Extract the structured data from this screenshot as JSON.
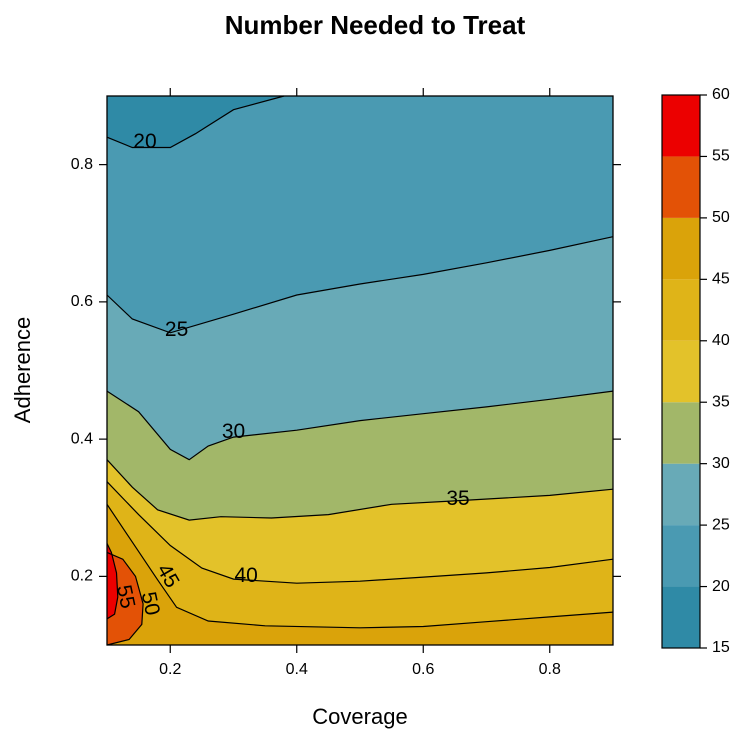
{
  "chart_data": {
    "type": "contour",
    "title": "Number Needed to Treat",
    "xlabel": "Coverage",
    "ylabel": "Adherence",
    "xlim": [
      0.1,
      0.9
    ],
    "ylim": [
      0.1,
      0.9
    ],
    "x_ticks": [
      0.2,
      0.4,
      0.6,
      0.8
    ],
    "x_tick_labels": [
      "0.2",
      "0.4",
      "0.6",
      "0.8"
    ],
    "y_ticks": [
      0.2,
      0.4,
      0.6,
      0.8
    ],
    "y_tick_labels": [
      "0.2",
      "0.4",
      "0.6",
      "0.8"
    ],
    "grid": false,
    "legend_position": "right",
    "colorbar": {
      "breaks": [
        15,
        20,
        25,
        30,
        35,
        40,
        45,
        50,
        55,
        60
      ],
      "tick_labels": [
        "15",
        "20",
        "25",
        "30",
        "35",
        "40",
        "45",
        "50",
        "55",
        "60"
      ],
      "colors": [
        "#2f8aa6",
        "#4a9ab2",
        "#68aab7",
        "#a2b769",
        "#e3c22a",
        "#dfb418",
        "#daa30a",
        "#e35206",
        "#ec0000"
      ]
    },
    "contours": [
      {
        "level": 20,
        "label": "20",
        "label_at": [
          0.16,
          0.832
        ],
        "points": [
          [
            0.1,
            0.84
          ],
          [
            0.14,
            0.825
          ],
          [
            0.2,
            0.825
          ],
          [
            0.24,
            0.845
          ],
          [
            0.3,
            0.88
          ],
          [
            0.38,
            0.9
          ]
        ]
      },
      {
        "level": 25,
        "label": "25",
        "label_at": [
          0.21,
          0.558
        ],
        "points": [
          [
            0.1,
            0.61
          ],
          [
            0.14,
            0.575
          ],
          [
            0.2,
            0.555
          ],
          [
            0.3,
            0.582
          ],
          [
            0.4,
            0.61
          ],
          [
            0.5,
            0.626
          ],
          [
            0.6,
            0.64
          ],
          [
            0.7,
            0.657
          ],
          [
            0.8,
            0.675
          ],
          [
            0.9,
            0.695
          ]
        ]
      },
      {
        "level": 30,
        "label": "30",
        "label_at": [
          0.3,
          0.41
        ],
        "points": [
          [
            0.1,
            0.47
          ],
          [
            0.15,
            0.44
          ],
          [
            0.2,
            0.385
          ],
          [
            0.23,
            0.37
          ],
          [
            0.26,
            0.39
          ],
          [
            0.3,
            0.403
          ],
          [
            0.4,
            0.413
          ],
          [
            0.5,
            0.427
          ],
          [
            0.6,
            0.437
          ],
          [
            0.7,
            0.447
          ],
          [
            0.8,
            0.458
          ],
          [
            0.9,
            0.47
          ]
        ]
      },
      {
        "level": 35,
        "label": "35",
        "label_at": [
          0.655,
          0.312
        ],
        "points": [
          [
            0.1,
            0.37
          ],
          [
            0.14,
            0.33
          ],
          [
            0.18,
            0.297
          ],
          [
            0.23,
            0.282
          ],
          [
            0.28,
            0.287
          ],
          [
            0.36,
            0.285
          ],
          [
            0.45,
            0.29
          ],
          [
            0.55,
            0.305
          ],
          [
            0.65,
            0.31
          ],
          [
            0.8,
            0.318
          ],
          [
            0.9,
            0.327
          ]
        ]
      },
      {
        "level": 40,
        "label": "40",
        "label_at": [
          0.32,
          0.2
        ],
        "points": [
          [
            0.1,
            0.338
          ],
          [
            0.15,
            0.29
          ],
          [
            0.2,
            0.245
          ],
          [
            0.25,
            0.212
          ],
          [
            0.3,
            0.196
          ],
          [
            0.4,
            0.19
          ],
          [
            0.5,
            0.193
          ],
          [
            0.6,
            0.199
          ],
          [
            0.7,
            0.205
          ],
          [
            0.8,
            0.213
          ],
          [
            0.9,
            0.225
          ]
        ]
      },
      {
        "level": 45,
        "label": "45",
        "label_at": [
          0.195,
          0.2
        ],
        "points": [
          [
            0.1,
            0.305
          ],
          [
            0.14,
            0.25
          ],
          [
            0.18,
            0.195
          ],
          [
            0.21,
            0.155
          ],
          [
            0.26,
            0.135
          ],
          [
            0.35,
            0.128
          ],
          [
            0.5,
            0.125
          ],
          [
            0.6,
            0.127
          ],
          [
            0.7,
            0.134
          ],
          [
            0.8,
            0.141
          ],
          [
            0.9,
            0.148
          ]
        ]
      },
      {
        "level": 50,
        "label": "50",
        "label_at": [
          0.167,
          0.16
        ],
        "points": [
          [
            0.1,
            0.235
          ],
          [
            0.125,
            0.225
          ],
          [
            0.145,
            0.2
          ],
          [
            0.157,
            0.16
          ],
          [
            0.155,
            0.13
          ],
          [
            0.135,
            0.108
          ],
          [
            0.1,
            0.1
          ]
        ]
      },
      {
        "level": 55,
        "label": "55",
        "label_at": [
          0.128,
          0.17
        ],
        "points": [
          [
            0.1,
            0.248
          ],
          [
            0.107,
            0.235
          ],
          [
            0.115,
            0.205
          ],
          [
            0.117,
            0.17
          ],
          [
            0.112,
            0.145
          ],
          [
            0.1,
            0.138
          ]
        ]
      }
    ]
  }
}
